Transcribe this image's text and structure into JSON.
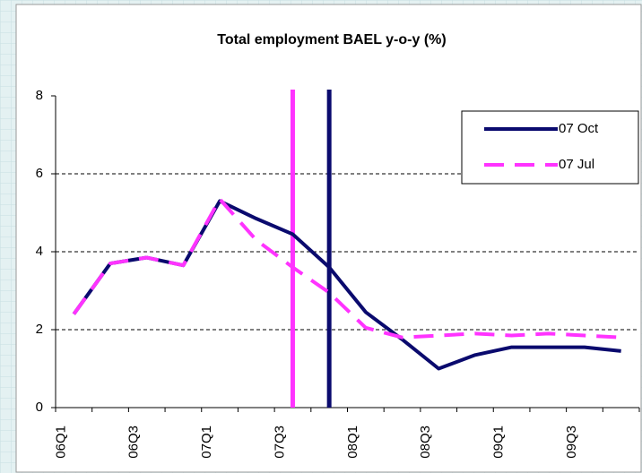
{
  "chart_data": {
    "type": "line",
    "title": "Total employment BAEL y-o-y (%)",
    "categories": [
      "06Q1",
      null,
      "06Q3",
      null,
      "07Q1",
      null,
      "07Q3",
      null,
      "08Q1",
      null,
      "08Q3",
      null,
      "09Q1",
      null,
      "09Q3",
      null
    ],
    "series": [
      {
        "name": "07 Oct",
        "color": "#0a0a6e",
        "dash": false,
        "values": [
          2.4,
          3.7,
          3.85,
          3.65,
          5.3,
          4.85,
          4.45,
          3.6,
          2.45,
          1.75,
          1.0,
          1.35,
          1.55,
          1.55,
          1.55,
          1.45
        ]
      },
      {
        "name": "07 Jul",
        "color": "#ff33ff",
        "dash": true,
        "values": [
          2.4,
          3.7,
          3.85,
          3.65,
          5.35,
          4.3,
          3.6,
          2.95,
          2.05,
          1.8,
          1.85,
          1.9,
          1.85,
          1.9,
          1.85,
          1.8
        ]
      }
    ],
    "ylim": [
      0,
      8
    ],
    "yticks": [
      0,
      2,
      4,
      6,
      8
    ],
    "grid": true,
    "legend": "top-right"
  }
}
